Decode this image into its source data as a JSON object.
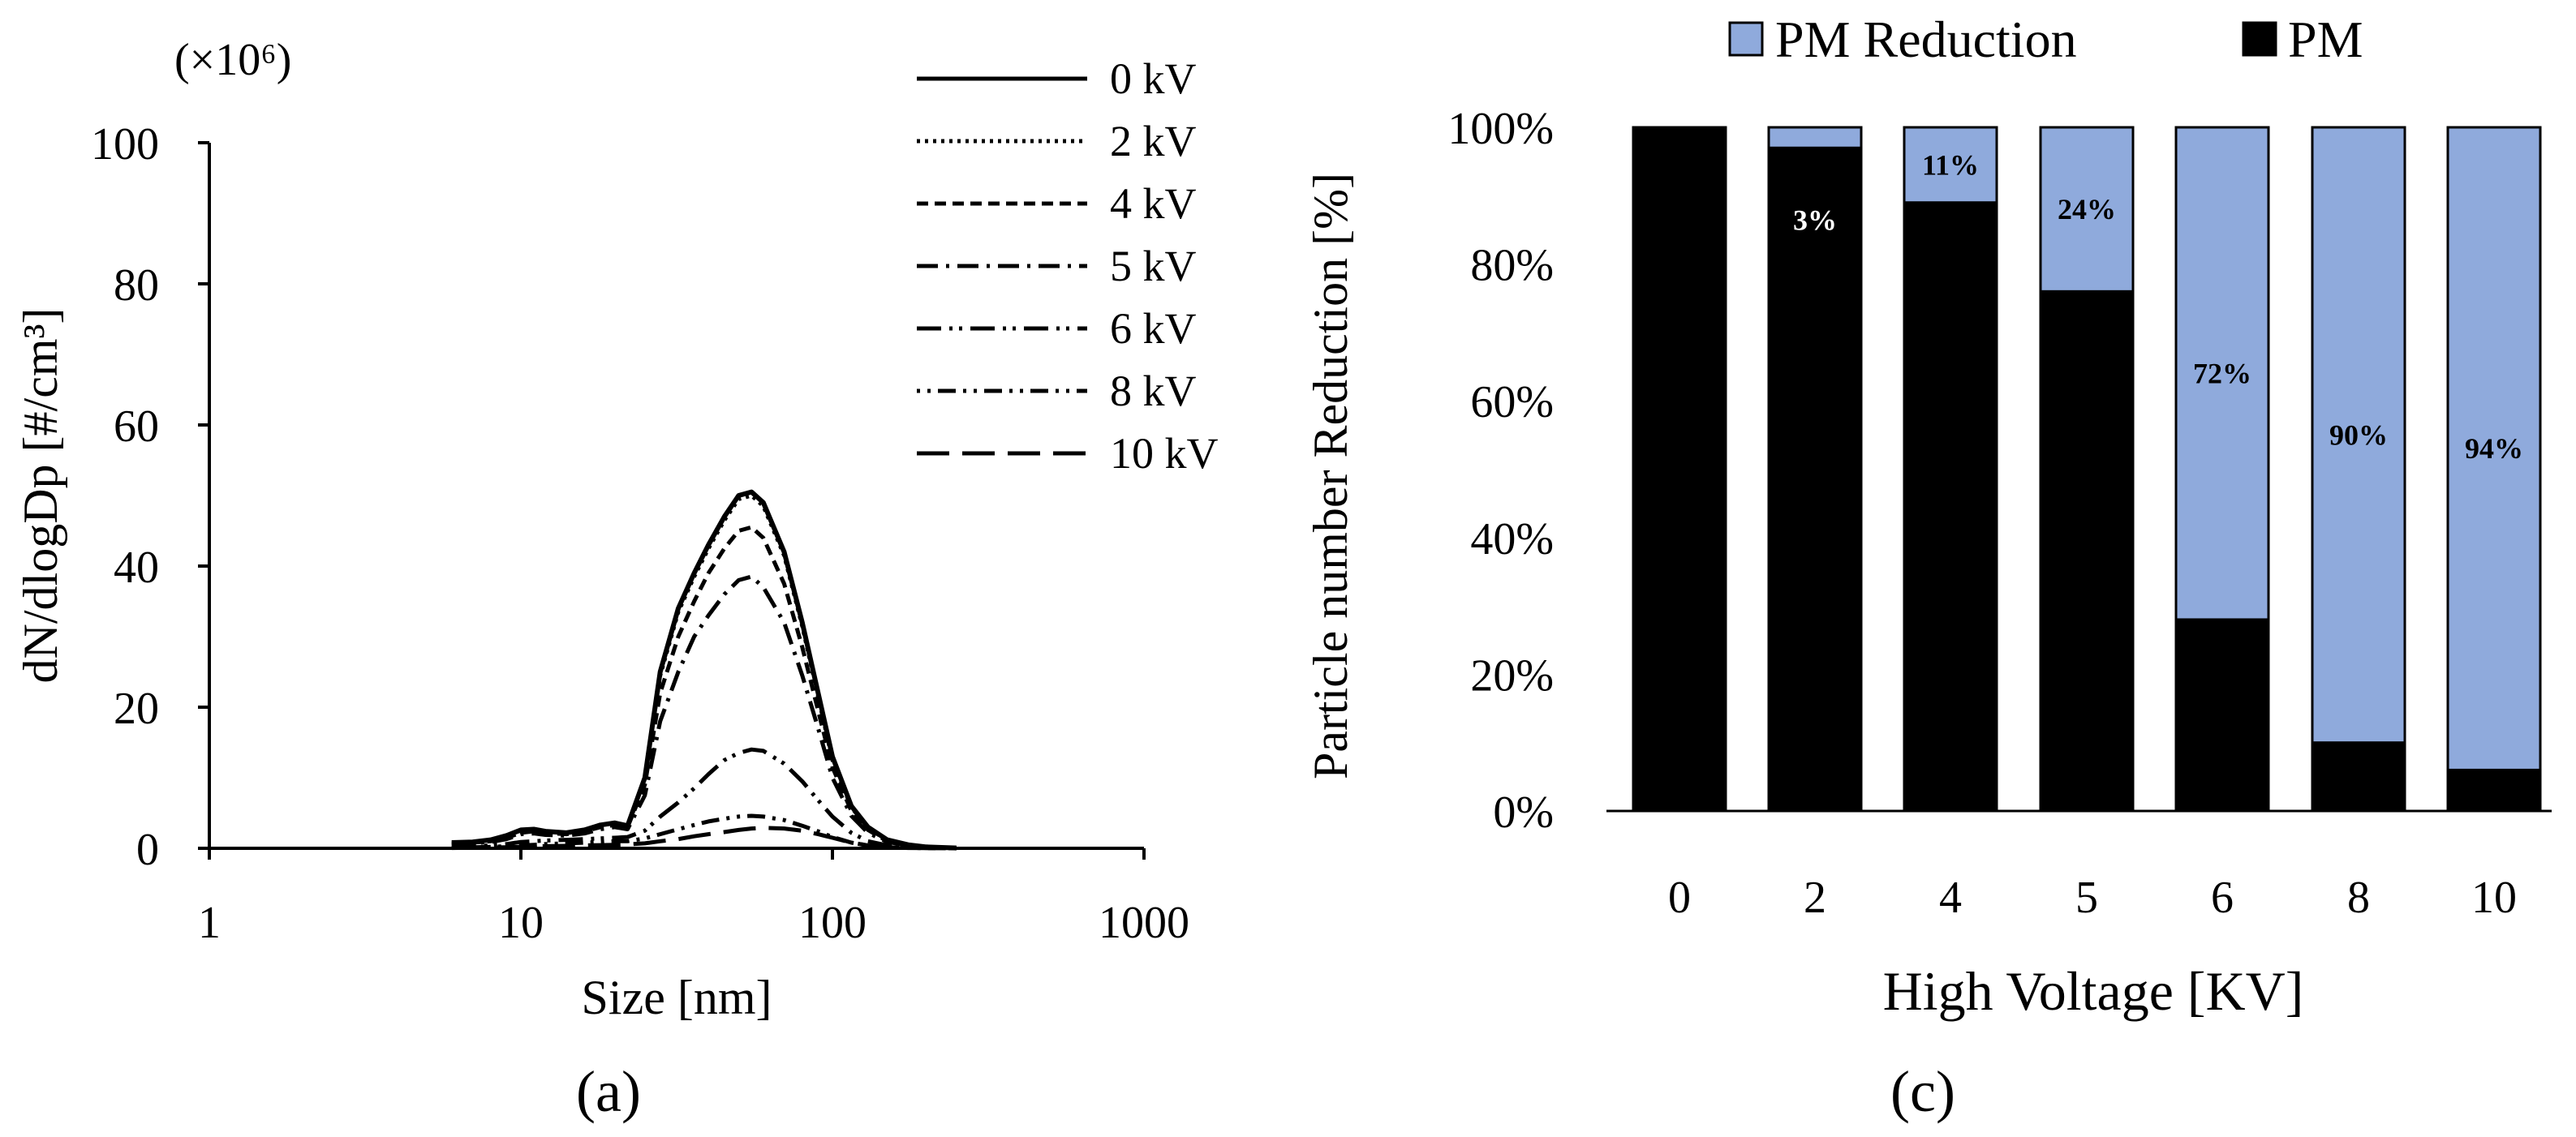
{
  "chart_data": [
    {
      "type": "line",
      "panel_label": "(a)",
      "multiplier": "(×10⁶)",
      "xlabel": "Size [nm]",
      "ylabel": "dN/dlogDp [#/cm³]",
      "xscale": "log",
      "xlim": [
        1,
        1000
      ],
      "ylim": [
        0,
        100
      ],
      "xticks": [
        "1",
        "10",
        "100",
        "1000"
      ],
      "yticks": [
        "0",
        "20",
        "40",
        "60",
        "80",
        "100"
      ],
      "legend_position": "top-right",
      "x": [
        6,
        7,
        8,
        9,
        10,
        11,
        12,
        14,
        16,
        18,
        20,
        22,
        25,
        28,
        32,
        36,
        40,
        45,
        50,
        55,
        60,
        70,
        80,
        90,
        100,
        115,
        130,
        150,
        175,
        200,
        250
      ],
      "series": [
        {
          "name": "0 kV",
          "dash": "solid",
          "values": [
            0.8,
            0.9,
            1.2,
            1.8,
            2.6,
            2.7,
            2.4,
            2.2,
            2.6,
            3.3,
            3.6,
            3.2,
            10,
            25,
            34,
            39,
            43,
            47,
            50,
            50.5,
            49,
            42,
            32,
            22,
            13,
            6,
            3,
            1.2,
            0.5,
            0.2,
            0.05
          ]
        },
        {
          "name": "2 kV",
          "dash": "dot",
          "values": [
            0.8,
            0.9,
            1.2,
            1.8,
            2.6,
            2.7,
            2.4,
            2.2,
            2.6,
            3.3,
            3.6,
            3.2,
            10,
            24.5,
            33.5,
            38.5,
            42.5,
            46.5,
            49.5,
            50,
            48.5,
            41.5,
            31.5,
            21.5,
            12.5,
            5.8,
            2.9,
            1.1,
            0.5,
            0.2,
            0.05
          ]
        },
        {
          "name": "4 kV",
          "dash": "dash-small",
          "values": [
            0.6,
            0.8,
            1,
            1.5,
            2.2,
            2.4,
            2.2,
            2,
            2.4,
            3,
            3.3,
            3,
            9,
            22,
            30,
            35,
            39,
            42.5,
            45,
            45.5,
            44,
            37.5,
            28.5,
            19.5,
            11.5,
            5.3,
            2.6,
            1,
            0.4,
            0.15,
            0.04
          ]
        },
        {
          "name": "5 kV",
          "dash": "dash-dot",
          "values": [
            0.5,
            0.7,
            0.9,
            1.3,
            2,
            2.1,
            1.9,
            1.8,
            2.1,
            2.7,
            3,
            2.7,
            7.5,
            18,
            25,
            30,
            33,
            36,
            38,
            38.5,
            37,
            32,
            24.5,
            17,
            10,
            4.6,
            2.2,
            0.9,
            0.4,
            0.12,
            0.03
          ]
        },
        {
          "name": "6 kV",
          "dash": "dash-dot-dot",
          "values": [
            0.2,
            0.3,
            0.4,
            0.6,
            0.9,
            1,
            1.1,
            1.2,
            1.3,
            1.4,
            1.5,
            1.6,
            2.5,
            4.5,
            6.5,
            8.5,
            10.5,
            12.5,
            13.5,
            14,
            13.8,
            12,
            9.5,
            6.8,
            4.5,
            2.2,
            1,
            0.4,
            0.15,
            0.05,
            0.02
          ]
        },
        {
          "name": "8 kV",
          "dash": "dot-dot-dash",
          "values": [
            0.1,
            0.15,
            0.2,
            0.3,
            0.4,
            0.5,
            0.6,
            0.7,
            0.8,
            0.9,
            1,
            1,
            1.4,
            2,
            2.7,
            3.3,
            3.8,
            4.2,
            4.5,
            4.6,
            4.5,
            4,
            3.2,
            2.4,
            1.6,
            0.8,
            0.4,
            0.15,
            0.06,
            0.02,
            0.01
          ]
        },
        {
          "name": "10 kV",
          "dash": "long-dash",
          "values": [
            0.05,
            0.08,
            0.1,
            0.15,
            0.2,
            0.25,
            0.3,
            0.35,
            0.4,
            0.45,
            0.5,
            0.55,
            0.7,
            1,
            1.3,
            1.7,
            2,
            2.3,
            2.6,
            2.8,
            2.9,
            2.8,
            2.5,
            2,
            1.5,
            0.8,
            0.4,
            0.15,
            0.05,
            0.02,
            0.01
          ]
        }
      ]
    },
    {
      "type": "bar",
      "stacked": true,
      "panel_label": "(c)",
      "xlabel": "High Voltage [KV]",
      "ylabel": "Particle number Reduction [%]",
      "categories": [
        "0",
        "2",
        "4",
        "5",
        "6",
        "8",
        "10"
      ],
      "ylim": [
        0,
        100
      ],
      "yticks": [
        "0%",
        "20%",
        "40%",
        "60%",
        "80%",
        "100%"
      ],
      "legend_position": "top",
      "series": [
        {
          "name": "PM",
          "color": "#000000",
          "values": [
            100,
            97,
            89,
            76,
            28,
            10,
            6
          ]
        },
        {
          "name": "PM Reduction",
          "color": "#8FAADC",
          "values": [
            0,
            3,
            11,
            24,
            72,
            90,
            94
          ],
          "labels": [
            "",
            "3%",
            "11%",
            "24%",
            "72%",
            "90%",
            "94%"
          ]
        }
      ]
    }
  ]
}
